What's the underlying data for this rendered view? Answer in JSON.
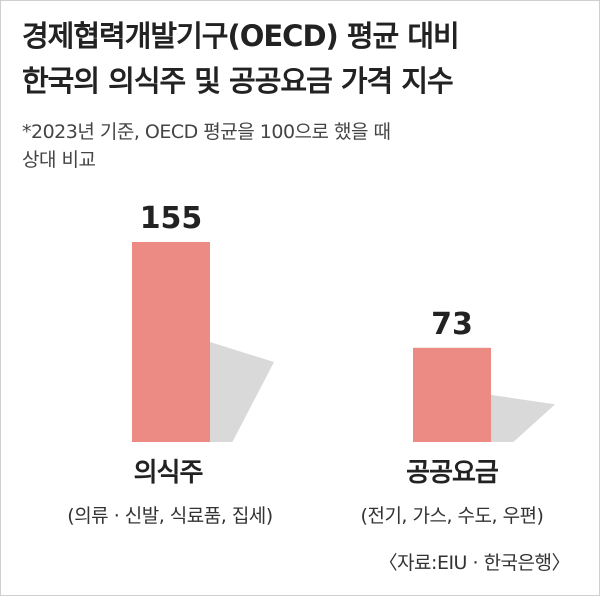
{
  "title_line1": "경제협력개발기구(OECD) 평균 대비",
  "title_line2": "한국의 의식주 및 공공요금 가격 지수",
  "note_line1": "*2023년 기준, OECD 평균을 100으로 했을 때",
  "note_line2": "상대 비교",
  "source": "〈자료:EIU · 한국은행〉",
  "colors": {
    "bar": "#ec8a84",
    "shadow": "#d9d9d9",
    "text": "#222222"
  },
  "chart_data": {
    "type": "bar",
    "categories": [
      "의식주",
      "공공요금"
    ],
    "category_details": [
      "(의류 · 신발, 식료품, 집세)",
      "(전기, 가스, 수도, 우편)"
    ],
    "values": [
      155,
      73
    ],
    "value_labels": [
      "155",
      "73"
    ],
    "ylim": [
      0,
      160
    ],
    "grid": false,
    "legend": "none"
  }
}
